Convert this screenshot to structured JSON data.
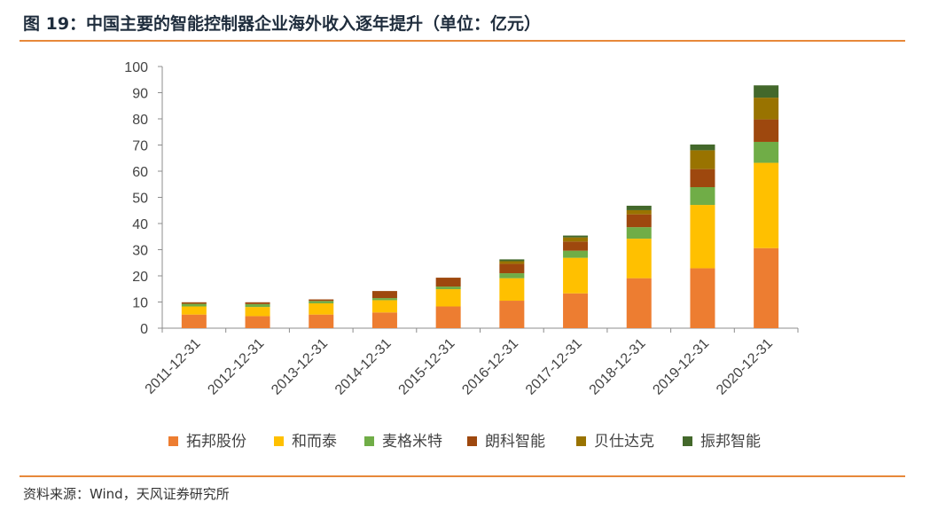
{
  "title": "图 19：中国主要的智能控制器企业海外收入逐年提升（单位：亿元）",
  "source": "资料来源：Wind，天风证券研究所",
  "colors": {
    "rule": "#e7883a",
    "series": [
      "#ed7d31",
      "#ffc000",
      "#70ad47",
      "#9e480e",
      "#997300",
      "#43682b"
    ]
  },
  "chart_data": {
    "type": "bar",
    "stacked": true,
    "categories": [
      "2011-12-31",
      "2012-12-31",
      "2013-12-31",
      "2014-12-31",
      "2015-12-31",
      "2016-12-31",
      "2017-12-31",
      "2018-12-31",
      "2019-12-31",
      "2020-12-31"
    ],
    "series": [
      {
        "name": "拓邦股份",
        "values": [
          5.2,
          4.6,
          5.2,
          6.0,
          8.3,
          10.5,
          13.3,
          19.1,
          22.9,
          30.6
        ]
      },
      {
        "name": "和而泰",
        "values": [
          3.1,
          3.5,
          4.3,
          4.7,
          6.6,
          8.6,
          13.6,
          15.1,
          24.2,
          32.6
        ]
      },
      {
        "name": "麦格米特",
        "values": [
          1.0,
          1.1,
          0.9,
          0.8,
          1.0,
          1.9,
          2.7,
          4.4,
          6.8,
          8.0
        ]
      },
      {
        "name": "朗科智能",
        "values": [
          0.6,
          0.7,
          0.6,
          2.7,
          3.4,
          3.6,
          3.5,
          4.9,
          6.9,
          8.6
        ]
      },
      {
        "name": "贝仕达克",
        "values": [
          0,
          0,
          0,
          0,
          0,
          1.0,
          1.6,
          1.6,
          7.2,
          8.3
        ]
      },
      {
        "name": "振邦智能",
        "values": [
          0,
          0,
          0,
          0,
          0,
          0.7,
          0.7,
          1.7,
          2.2,
          4.7
        ]
      }
    ],
    "ylim": [
      0,
      100
    ],
    "yticks": [
      0,
      10,
      20,
      30,
      40,
      50,
      60,
      70,
      80,
      90,
      100
    ],
    "grid": false,
    "legend_position": "bottom"
  }
}
